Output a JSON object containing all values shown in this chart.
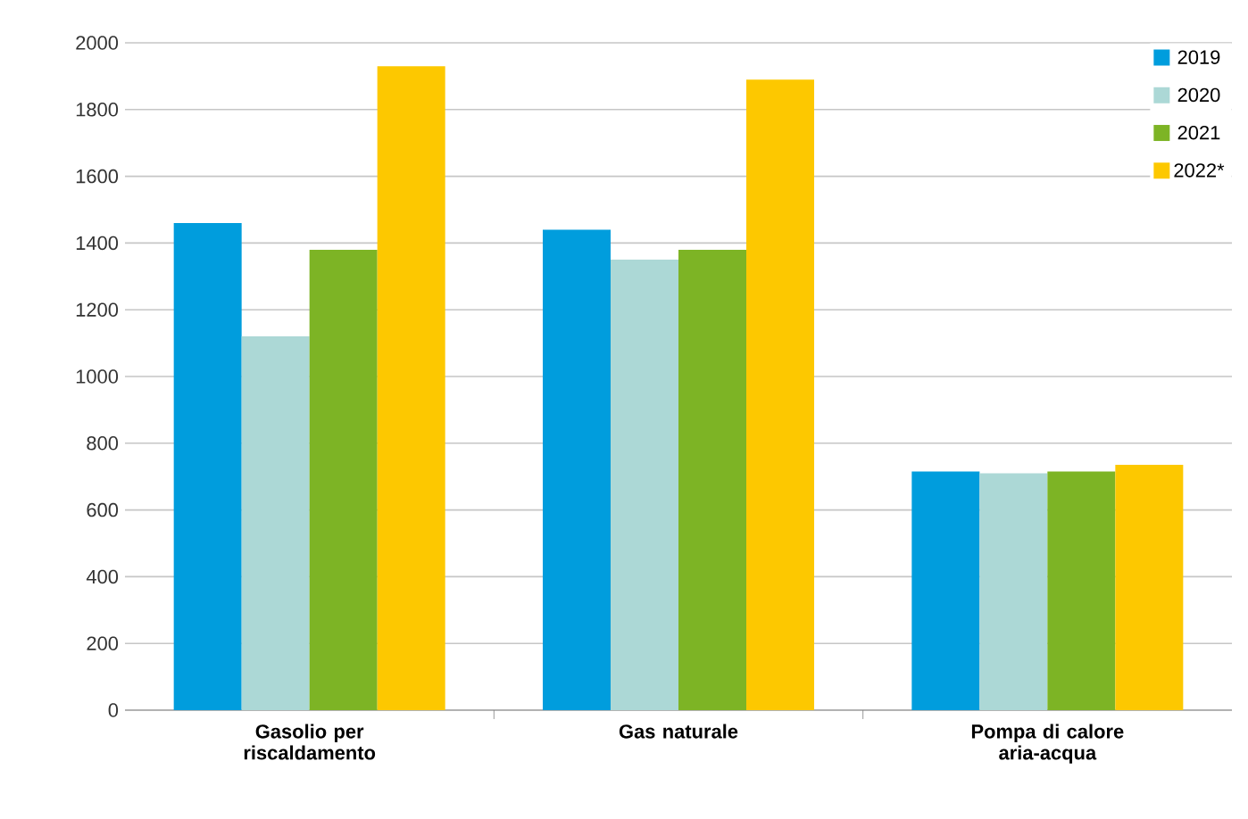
{
  "chart_data": {
    "type": "bar",
    "categories": [
      "Gasolio per riscaldamento",
      "Gas naturale",
      "Pompa di calore aria-acqua"
    ],
    "series": [
      {
        "name": "2019",
        "color": "#009ddd",
        "values": [
          1460,
          1440,
          715
        ]
      },
      {
        "name": "2020",
        "color": "#acd8d6",
        "values": [
          1120,
          1350,
          710
        ]
      },
      {
        "name": "2021",
        "color": "#7db425",
        "values": [
          1380,
          1380,
          715
        ]
      },
      {
        "name": "2022*",
        "color": "#fdc800",
        "values": [
          1930,
          1890,
          735
        ]
      }
    ],
    "ylim": [
      0,
      2000
    ],
    "yticks": [
      0,
      200,
      400,
      600,
      800,
      1000,
      1200,
      1400,
      1600,
      1800,
      2000
    ],
    "grid": "y",
    "legend": "top right"
  }
}
